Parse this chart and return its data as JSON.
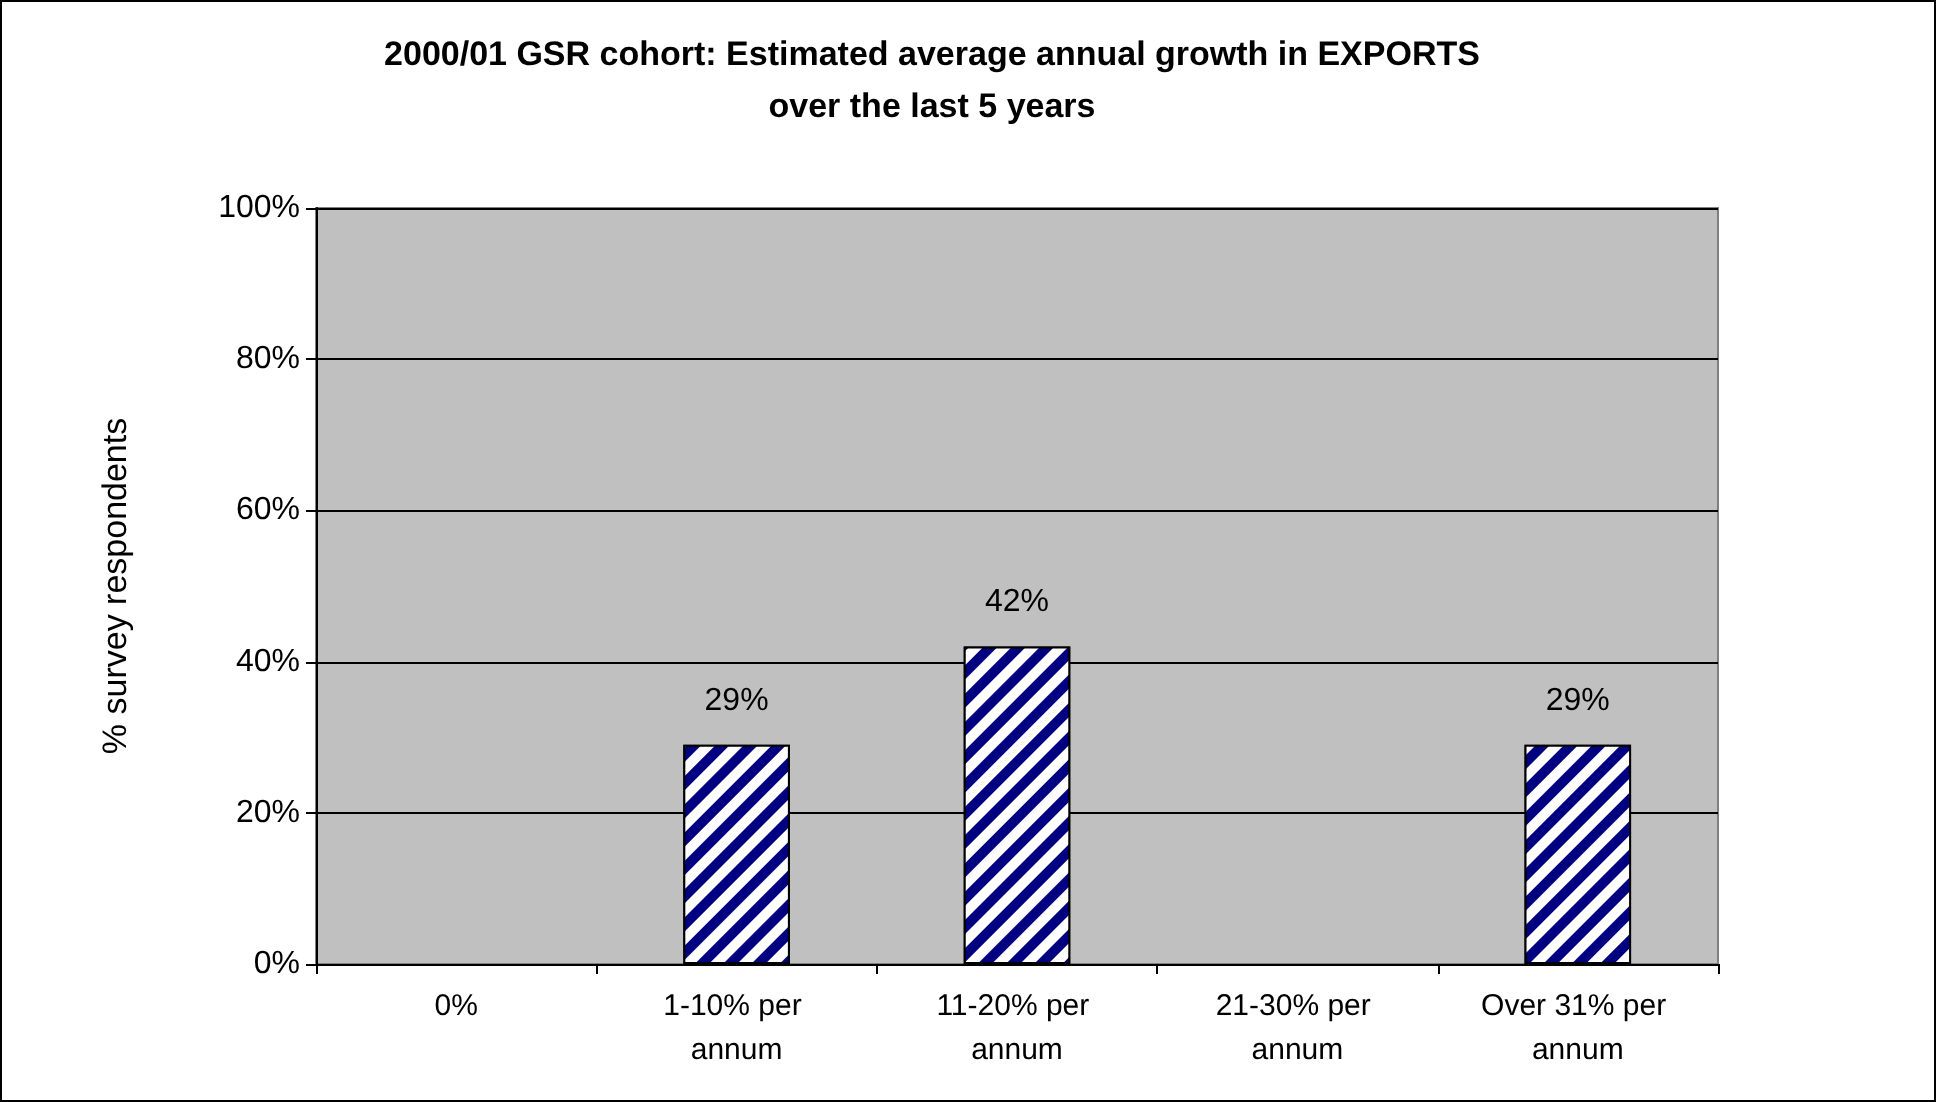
{
  "chart_data": {
    "type": "bar",
    "title": "2000/01 GSR cohort: Estimated average annual growth in EXPORTS\nover the last 5 years",
    "ylabel": "% survey respondents",
    "categories": [
      "0%",
      "1-10% per annum",
      "11-20% per annum",
      "21-30% per annum",
      "Over 31% per annum"
    ],
    "values": [
      0,
      29,
      42,
      0,
      29
    ],
    "value_labels": [
      null,
      "29%",
      "42%",
      null,
      "29%"
    ],
    "color": "#000080",
    "ylim": [
      0,
      100
    ],
    "yticks": [
      {
        "value": 0,
        "label": "0%"
      },
      {
        "value": 20,
        "label": "20%"
      },
      {
        "value": 40,
        "label": "40%"
      },
      {
        "value": 60,
        "label": "60%"
      },
      {
        "value": 80,
        "label": "80%"
      },
      {
        "value": 100,
        "label": "100%"
      }
    ],
    "grid": "y"
  }
}
